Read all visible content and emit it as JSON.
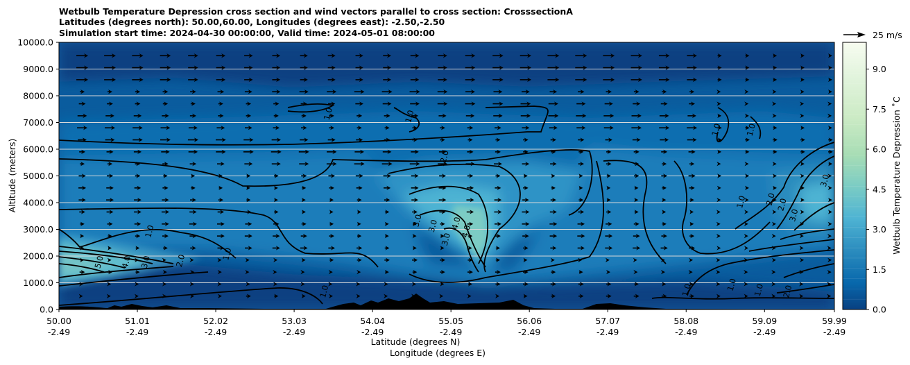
{
  "chart_data": {
    "type": "contour",
    "title_lines": [
      "Wetbulb Temperature Depression cross section and wind vectors parallel to cross section: CrosssectionA",
      "Latitudes (degrees north): 50.00,60.00, Longitudes (degrees east): -2.50,-2.50",
      "Simulation start time: 2024-04-30 00:00:00, Valid time: 2024-05-01 08:00:00"
    ],
    "ylabel": "Altitude (meters)",
    "xlabel_lat": "Latitude (degrees N)",
    "xlabel_lon": "Longitude (degrees E)",
    "ylim": [
      0,
      10000
    ],
    "yticks": [
      "0.0",
      "1000.0",
      "2000.0",
      "3000.0",
      "4000.0",
      "5000.0",
      "6000.0",
      "7000.0",
      "8000.0",
      "9000.0",
      "10000.0"
    ],
    "xlim": [
      50.0,
      59.99
    ],
    "xtick_values": [
      50.0,
      51.01,
      52.02,
      53.03,
      54.04,
      55.05,
      56.06,
      57.07,
      58.08,
      59.09,
      59.99
    ],
    "xticks_lat": [
      "50.00",
      "51.01",
      "52.02",
      "53.03",
      "54.04",
      "55.05",
      "56.06",
      "57.07",
      "58.08",
      "59.09",
      "59.99"
    ],
    "xticks_lon": [
      "-2.49",
      "-2.49",
      "-2.49",
      "-2.49",
      "-2.49",
      "-2.49",
      "-2.49",
      "-2.49",
      "-2.49",
      "-2.49",
      "-2.49"
    ],
    "gridlines_y": [
      1000,
      2000,
      3000,
      4000,
      5000,
      6000,
      7000,
      8000,
      9000
    ],
    "colorbar": {
      "label": "Wetbulb Temperature Depression ˚C",
      "range": [
        0.0,
        10.0
      ],
      "ticks": [
        "0.0",
        "1.5",
        "3.0",
        "4.5",
        "6.0",
        "7.5",
        "9.0"
      ],
      "tick_values": [
        0,
        1.5,
        3.0,
        4.5,
        6.0,
        7.5,
        9.0
      ],
      "colors": [
        "#084081",
        "#0868ac",
        "#2b8cbe",
        "#4eb3d3",
        "#7bccc4",
        "#a8ddb5",
        "#ccebc5",
        "#e0f3db",
        "#f7fcf0"
      ]
    },
    "quiver_key": "25 m/s",
    "contour_labels": [
      {
        "text": "1.0",
        "lat": 53.5,
        "alt": 7300
      },
      {
        "text": "1.0",
        "lat": 54.55,
        "alt": 7200
      },
      {
        "text": "1.0",
        "lat": 51.2,
        "alt": 2900
      },
      {
        "text": "1.0",
        "lat": 52.2,
        "alt": 2050
      },
      {
        "text": "2.0",
        "lat": 51.6,
        "alt": 1800
      },
      {
        "text": "3.0",
        "lat": 51.15,
        "alt": 1750
      },
      {
        "text": "4.0",
        "lat": 50.9,
        "alt": 1750
      },
      {
        "text": "5.0",
        "lat": 50.55,
        "alt": 1750
      },
      {
        "text": "2.0",
        "lat": 55.0,
        "alt": 5700
      },
      {
        "text": "3.0",
        "lat": 54.65,
        "alt": 3300
      },
      {
        "text": "3.0",
        "lat": 54.85,
        "alt": 3100
      },
      {
        "text": "3.0",
        "lat": 55.02,
        "alt": 2600
      },
      {
        "text": "4.0",
        "lat": 55.15,
        "alt": 3200
      },
      {
        "text": "4.0",
        "lat": 55.28,
        "alt": 2900
      },
      {
        "text": "1.0",
        "lat": 53.45,
        "alt": 650
      },
      {
        "text": "1.0",
        "lat": 58.5,
        "alt": 6700
      },
      {
        "text": "1.0",
        "lat": 58.95,
        "alt": 6700
      },
      {
        "text": "1.0",
        "lat": 58.82,
        "alt": 4000
      },
      {
        "text": "2.0",
        "lat": 59.2,
        "alt": 4100
      },
      {
        "text": "2.0",
        "lat": 59.35,
        "alt": 3900
      },
      {
        "text": "3.0",
        "lat": 59.5,
        "alt": 3500
      },
      {
        "text": "3.0",
        "lat": 59.9,
        "alt": 4800
      },
      {
        "text": "1.0",
        "lat": 58.12,
        "alt": 700
      },
      {
        "text": "1.0",
        "lat": 58.7,
        "alt": 900
      },
      {
        "text": "1.0",
        "lat": 59.05,
        "alt": 700
      },
      {
        "text": "2.0",
        "lat": 59.42,
        "alt": 650
      }
    ]
  }
}
